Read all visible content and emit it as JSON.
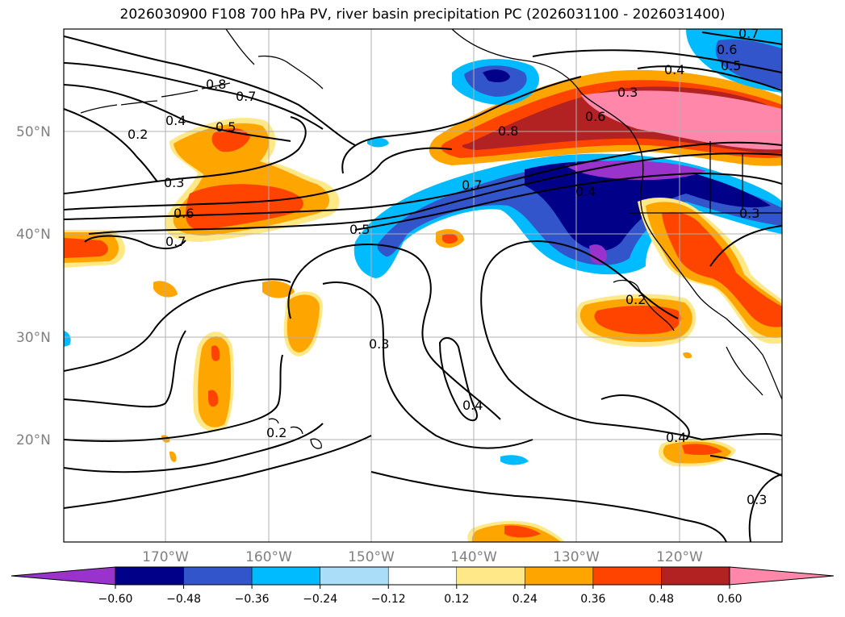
{
  "title": "2026030900 F108 700 hPa PV, river basin precipitation PC (2026031100 - 2026031400)",
  "map": {
    "lat_labels": [
      "50°N",
      "40°N",
      "30°N",
      "20°N"
    ],
    "lon_labels": [
      "170°W",
      "160°W",
      "150°W",
      "140°W",
      "130°W",
      "120°W"
    ],
    "contour_labels": [
      "0.8",
      "0.7",
      "0.4",
      "0.5",
      "0.2",
      "0.3",
      "0.6",
      "0.7",
      "0.5",
      "0.7",
      "0.6",
      "0.5",
      "0.4",
      "0.3",
      "0.8",
      "0.6",
      "0.7",
      "0.4",
      "0.3",
      "0.2",
      "0.3",
      "0.4",
      "0.2",
      "0.4",
      "0.3"
    ]
  },
  "colorbar": {
    "colors": [
      "#9933cc",
      "#000088",
      "#3355cc",
      "#00bbff",
      "#aaddf8",
      "#ffffff",
      "#ffe888",
      "#ffa500",
      "#ff4400",
      "#b22222",
      "#ff88aa"
    ],
    "tick_labels": [
      "−0.60",
      "−0.48",
      "−0.36",
      "−0.24",
      "−0.12",
      "0.12",
      "0.24",
      "0.36",
      "0.48",
      "0.60"
    ]
  }
}
